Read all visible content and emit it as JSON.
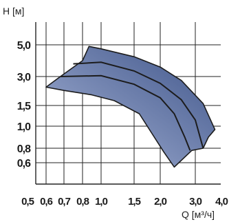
{
  "chart_data": {
    "type": "area",
    "title": "",
    "ylabel": "H [м]",
    "xlabel": "Q [м³/ч]",
    "x_ticks": [
      {
        "label": "0,5",
        "value": 0.5
      },
      {
        "label": "0,6",
        "value": 0.6
      },
      {
        "label": "0,7",
        "value": 0.7
      },
      {
        "label": "0,8",
        "value": 0.8
      },
      {
        "label": "1,0",
        "value": 1.0
      },
      {
        "label": "1,5",
        "value": 1.5
      },
      {
        "label": "2,0",
        "value": 2.0
      },
      {
        "label": "3,0",
        "value": 3.0
      },
      {
        "label": "4,0",
        "value": 4.0
      }
    ],
    "y_ticks": [
      {
        "label": "5,0",
        "value": 5.0
      },
      {
        "label": "3,0",
        "value": 3.0
      },
      {
        "label": "1,5",
        "value": 1.5
      },
      {
        "label": "1,0",
        "value": 1.0
      },
      {
        "label": "0,8",
        "value": 0.8
      },
      {
        "label": "0,6",
        "value": 0.6
      }
    ],
    "xlim": [
      0.5,
      4.0
    ],
    "ylim": [
      0.4,
      7.5
    ],
    "grid": true,
    "colors": {
      "region_light": "#a9b6d8",
      "region_dark": "#3e5489",
      "curve_line": "#1c1c1c",
      "grid_line": "#222222"
    },
    "region": {
      "outline": [
        [
          0.6,
          2.45
        ],
        [
          0.68,
          3.0
        ],
        [
          0.8,
          4.0
        ],
        [
          0.87,
          4.9
        ],
        [
          1.0,
          4.75
        ],
        [
          1.5,
          4.25
        ],
        [
          2.0,
          3.6
        ],
        [
          2.6,
          2.8
        ],
        [
          3.3,
          1.6
        ],
        [
          3.75,
          0.97
        ],
        [
          3.5,
          0.9
        ],
        [
          3.3,
          0.8
        ],
        [
          2.9,
          0.77
        ],
        [
          2.4,
          0.54
        ],
        [
          2.1,
          0.75
        ],
        [
          1.6,
          1.3
        ],
        [
          1.2,
          1.75
        ],
        [
          0.9,
          2.05
        ],
        [
          0.7,
          2.28
        ]
      ]
    },
    "series": [
      {
        "values": [
          [
            0.68,
            3.0
          ],
          [
            1.0,
            3.05
          ],
          [
            1.5,
            2.6
          ],
          [
            2.0,
            1.9
          ],
          [
            2.4,
            1.3
          ],
          [
            2.7,
            0.9
          ],
          [
            2.85,
            0.77
          ]
        ]
      },
      {
        "values": [
          [
            0.75,
            3.8
          ],
          [
            1.0,
            3.9
          ],
          [
            1.5,
            3.35
          ],
          [
            2.0,
            2.65
          ],
          [
            2.6,
            1.8
          ],
          [
            3.0,
            1.15
          ],
          [
            3.3,
            0.8
          ]
        ]
      }
    ]
  }
}
